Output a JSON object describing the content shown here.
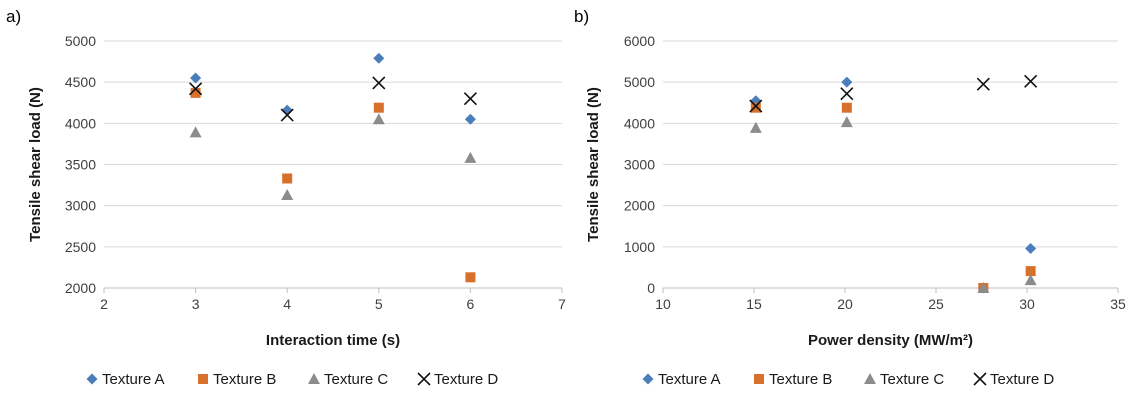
{
  "chart_data": [
    {
      "type": "scatter",
      "panel_label": "a)",
      "xlabel": "Interaction time (s)",
      "ylabel": "Tensile shear load (N)",
      "xlim": [
        2,
        7
      ],
      "ylim": [
        2000,
        5000
      ],
      "xticks": [
        2,
        3,
        4,
        5,
        6,
        7
      ],
      "yticks": [
        2000,
        2500,
        3000,
        3500,
        4000,
        4500,
        5000
      ],
      "grid": "horizontal",
      "legend": "bottom",
      "series": [
        {
          "name": "Texture A",
          "marker": "diamond",
          "color": "#4a7ebb",
          "points": [
            [
              3,
              4550
            ],
            [
              4,
              4160
            ],
            [
              5,
              4790
            ],
            [
              6,
              4050
            ]
          ]
        },
        {
          "name": "Texture B",
          "marker": "square",
          "color": "#d86f2b",
          "points": [
            [
              3,
              4370
            ],
            [
              4,
              3330
            ],
            [
              5,
              4190
            ],
            [
              6,
              2130
            ]
          ]
        },
        {
          "name": "Texture C",
          "marker": "triangle",
          "color": "#8c8c8c",
          "points": [
            [
              3,
              3890
            ],
            [
              4,
              3130
            ],
            [
              5,
              4050
            ],
            [
              6,
              3580
            ]
          ]
        },
        {
          "name": "Texture D",
          "marker": "x",
          "color": "#111111",
          "points": [
            [
              3,
              4420
            ],
            [
              4,
              4100
            ],
            [
              5,
              4490
            ],
            [
              6,
              4300
            ]
          ]
        }
      ]
    },
    {
      "type": "scatter",
      "panel_label": "b)",
      "xlabel": "Power density (MW/m²)",
      "ylabel": "Tensile shear load (N)",
      "xlim": [
        10,
        35
      ],
      "ylim": [
        0,
        6000
      ],
      "xticks": [
        10,
        15,
        20,
        25,
        30,
        35
      ],
      "yticks": [
        0,
        1000,
        2000,
        3000,
        4000,
        5000,
        6000
      ],
      "grid": "horizontal",
      "legend": "bottom",
      "series": [
        {
          "name": "Texture A",
          "marker": "diamond",
          "color": "#4a7ebb",
          "points": [
            [
              15.1,
              4550
            ],
            [
              20.1,
              5000
            ],
            [
              27.6,
              0
            ],
            [
              30.2,
              960
            ]
          ]
        },
        {
          "name": "Texture B",
          "marker": "square",
          "color": "#d86f2b",
          "points": [
            [
              15.1,
              4380
            ],
            [
              20.1,
              4380
            ],
            [
              27.6,
              0
            ],
            [
              30.2,
              410
            ]
          ]
        },
        {
          "name": "Texture C",
          "marker": "triangle",
          "color": "#8c8c8c",
          "points": [
            [
              15.1,
              3890
            ],
            [
              20.1,
              4030
            ],
            [
              27.6,
              0
            ],
            [
              30.2,
              190
            ]
          ]
        },
        {
          "name": "Texture D",
          "marker": "x",
          "color": "#111111",
          "points": [
            [
              15.1,
              4420
            ],
            [
              20.1,
              4720
            ],
            [
              27.6,
              4950
            ],
            [
              30.2,
              5020
            ]
          ]
        }
      ]
    }
  ]
}
